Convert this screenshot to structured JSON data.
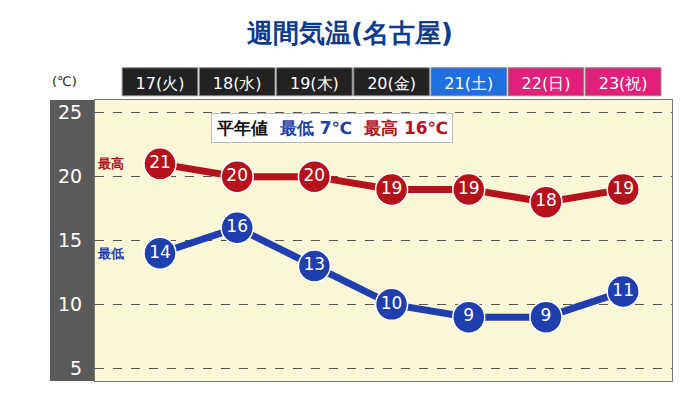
{
  "chart_data": {
    "type": "line",
    "title": "週間気温(名古屋)",
    "y_label": "(℃)",
    "categories": [
      "17(火)",
      "18(水)",
      "19(木)",
      "20(金)",
      "21(土)",
      "22(日)",
      "23(祝)"
    ],
    "series": [
      {
        "name": "最高",
        "color": "#b5121b",
        "values": [
          21,
          20,
          20,
          19,
          19,
          18,
          19
        ]
      },
      {
        "name": "最低",
        "color": "#1f3fae",
        "values": [
          14,
          16,
          13,
          10,
          9,
          9,
          11
        ]
      }
    ],
    "ylim": [
      4,
      26
    ],
    "yticks": [
      5,
      10,
      15,
      20,
      25
    ],
    "grid": true,
    "data_labels": true,
    "marker": "circle",
    "line_style": "solid",
    "normals": {
      "label": "平年値",
      "unit": "℃",
      "low": {
        "name": "最低",
        "value": 7
      },
      "high": {
        "name": "最高",
        "value": 16
      }
    }
  }
}
